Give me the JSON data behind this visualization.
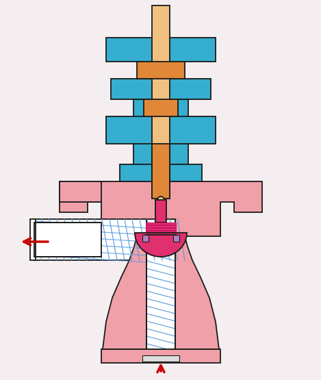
{
  "bg": "#f5eef0",
  "c_pink": "#f0a0a8",
  "c_blue": "#35aecf",
  "c_orange": "#f0c080",
  "c_orange_dk": "#e08838",
  "c_magenta": "#e0306e",
  "c_white": "#ffffff",
  "c_black": "#1a1a1a",
  "c_hatch": "#5599dd",
  "c_purple": "#b080c0",
  "c_gray": "#dddddd",
  "c_red": "#cc0000",
  "lw": 1.3
}
